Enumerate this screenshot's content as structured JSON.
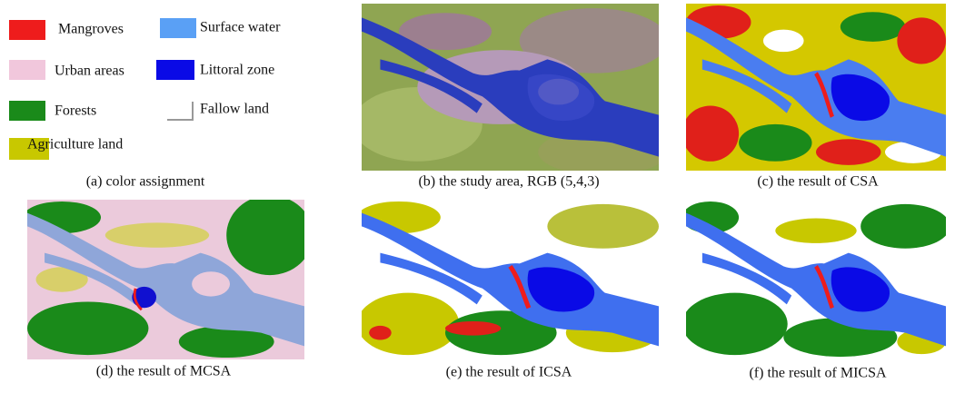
{
  "legend": {
    "items": [
      {
        "label": "Mangroves"
      },
      {
        "label": "Surface water"
      },
      {
        "label": "Urban areas"
      },
      {
        "label": "Littoral zone"
      },
      {
        "label": "Forests"
      },
      {
        "label": "Fallow land"
      },
      {
        "label": "Agriculture land"
      }
    ]
  },
  "panels": [
    {
      "caption": "(a) color assignment"
    },
    {
      "caption": "(b) the study area, RGB (5,4,3)"
    },
    {
      "caption": "(c) the result of CSA"
    },
    {
      "caption": "(d) the result of MCSA"
    },
    {
      "caption": "(e) the result of ICSA"
    },
    {
      "caption": "(f) the result of MICSA"
    }
  ]
}
